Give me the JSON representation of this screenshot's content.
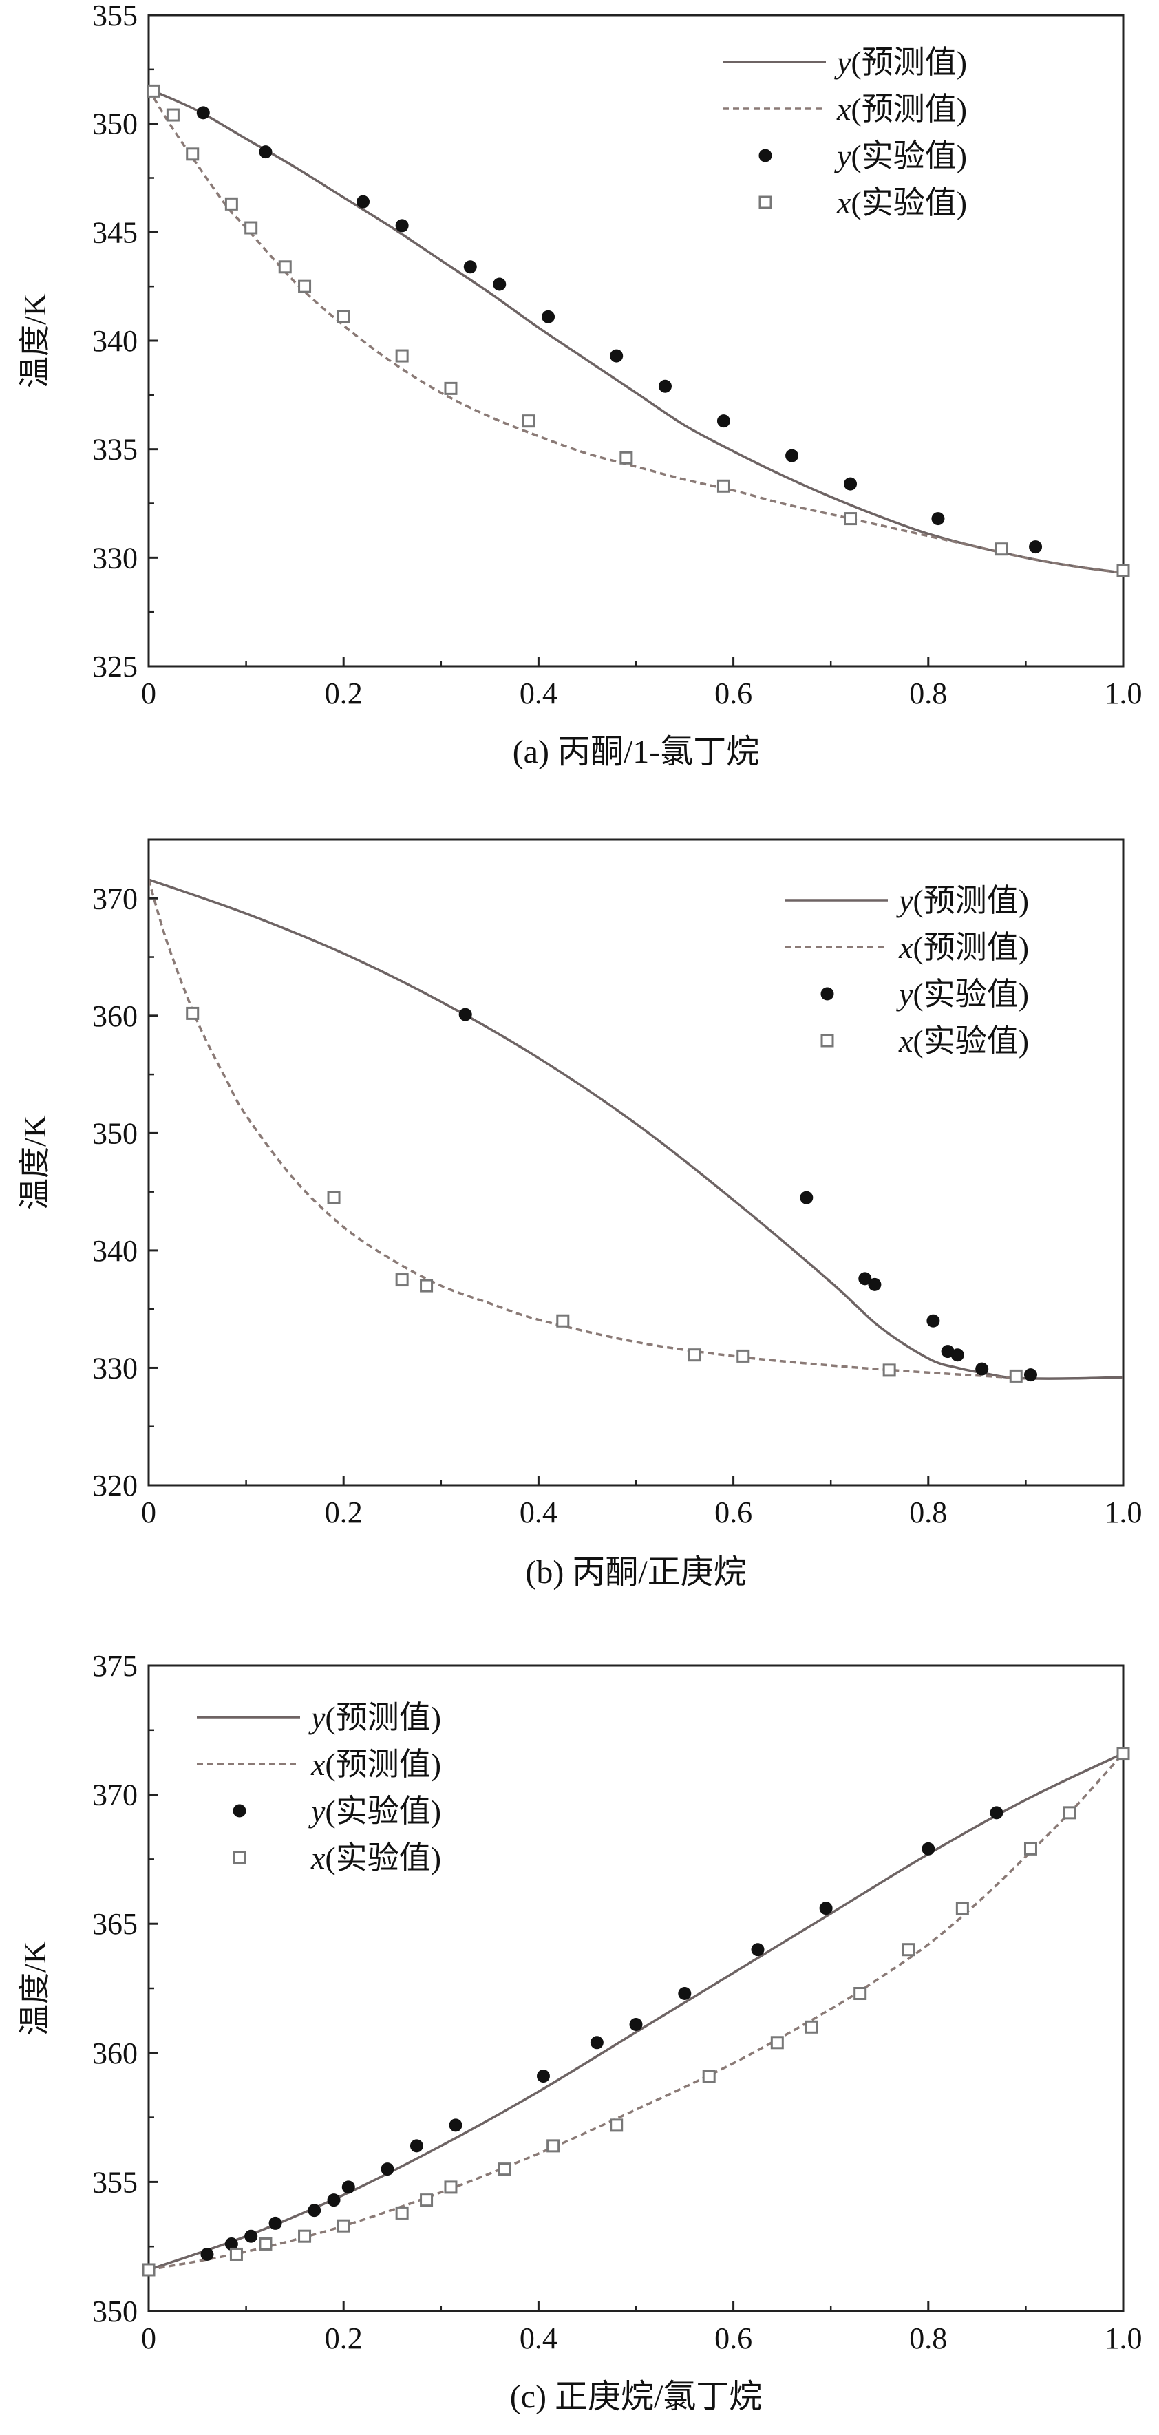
{
  "figure_title": "",
  "chart_data": [
    {
      "type": "scatter",
      "caption": "(a) 丙酮/1-氯丁烷",
      "xlabel": "",
      "ylabel": "温度/K",
      "xlim": [
        0,
        1.0
      ],
      "ylim": [
        325,
        355
      ],
      "xticks": [
        "0",
        "0.2",
        "0.4",
        "0.6",
        "0.8",
        "1.0"
      ],
      "yticks": [
        "325",
        "330",
        "335",
        "340",
        "345",
        "350",
        "355"
      ],
      "grid": false,
      "legend_position": "top-right",
      "legend": [
        {
          "var": "y",
          "text": "(预测值)",
          "kind": "solid"
        },
        {
          "var": "x",
          "text": "(预测值)",
          "kind": "dashed"
        },
        {
          "var": "y",
          "text": "(实验值)",
          "kind": "dot"
        },
        {
          "var": "x",
          "text": "(实验值)",
          "kind": "square"
        }
      ],
      "series": [
        {
          "name": "y(预测值)",
          "kind": "solid",
          "x": [
            0,
            0.05,
            0.1,
            0.15,
            0.2,
            0.25,
            0.3,
            0.35,
            0.4,
            0.45,
            0.5,
            0.55,
            0.6,
            0.65,
            0.7,
            0.75,
            0.8,
            0.85,
            0.9,
            0.95,
            1.0
          ],
          "y": [
            351.6,
            350.6,
            349.3,
            348.0,
            346.6,
            345.2,
            343.7,
            342.2,
            340.6,
            339.1,
            337.6,
            336.1,
            334.9,
            333.8,
            332.8,
            331.9,
            331.1,
            330.5,
            330.0,
            329.6,
            329.3
          ]
        },
        {
          "name": "x(预测值)",
          "kind": "dashed",
          "x": [
            0,
            0.02,
            0.05,
            0.08,
            0.1,
            0.15,
            0.2,
            0.25,
            0.3,
            0.35,
            0.4,
            0.45,
            0.5,
            0.55,
            0.6,
            0.65,
            0.7,
            0.75,
            0.8,
            0.85,
            0.9,
            0.95,
            1.0
          ],
          "y": [
            351.6,
            350.1,
            348.1,
            346.2,
            345.2,
            342.7,
            340.7,
            339.0,
            337.6,
            336.5,
            335.6,
            334.8,
            334.2,
            333.6,
            333.1,
            332.5,
            332.0,
            331.5,
            331.0,
            330.5,
            330.0,
            329.6,
            329.3
          ]
        },
        {
          "name": "y(实验值)",
          "kind": "dot",
          "x": [
            0.056,
            0.12,
            0.22,
            0.26,
            0.33,
            0.36,
            0.41,
            0.48,
            0.53,
            0.59,
            0.66,
            0.72,
            0.81,
            0.91
          ],
          "y": [
            350.5,
            348.7,
            346.4,
            345.3,
            343.4,
            342.6,
            341.1,
            339.3,
            337.9,
            336.3,
            334.7,
            333.4,
            331.8,
            330.5
          ]
        },
        {
          "name": "x(实验值)",
          "kind": "square",
          "x": [
            0.005,
            0.025,
            0.045,
            0.085,
            0.105,
            0.14,
            0.16,
            0.2,
            0.26,
            0.31,
            0.39,
            0.49,
            0.59,
            0.72,
            0.875,
            1.0
          ],
          "y": [
            351.5,
            350.4,
            348.6,
            346.3,
            345.2,
            343.4,
            342.5,
            341.1,
            339.3,
            337.8,
            336.3,
            334.6,
            333.3,
            331.8,
            330.4,
            329.4
          ]
        }
      ]
    },
    {
      "type": "scatter",
      "caption": "(b) 丙酮/正庚烷",
      "xlabel": "",
      "ylabel": "温度/K",
      "xlim": [
        0,
        1.0
      ],
      "ylim": [
        320,
        375
      ],
      "xticks": [
        "0",
        "0.2",
        "0.4",
        "0.6",
        "0.8",
        "1.0"
      ],
      "yticks": [
        "320",
        "330",
        "340",
        "350",
        "360",
        "370"
      ],
      "grid": false,
      "legend_position": "top-right",
      "legend": [
        {
          "var": "y",
          "text": "(预测值)",
          "kind": "solid"
        },
        {
          "var": "x",
          "text": "(预测值)",
          "kind": "dashed"
        },
        {
          "var": "y",
          "text": "(实验值)",
          "kind": "dot"
        },
        {
          "var": "x",
          "text": "(实验值)",
          "kind": "square"
        }
      ],
      "series": [
        {
          "name": "y(预测值)",
          "kind": "solid",
          "x": [
            0,
            0.1,
            0.2,
            0.3,
            0.4,
            0.5,
            0.6,
            0.7,
            0.75,
            0.8,
            0.83,
            0.86,
            0.88,
            0.9,
            0.95,
            1.0
          ],
          "y": [
            371.6,
            368.7,
            365.3,
            361.2,
            356.4,
            350.8,
            344.3,
            337.3,
            333.5,
            330.8,
            330.0,
            329.5,
            329.2,
            329.1,
            329.1,
            329.2
          ]
        },
        {
          "name": "x(预测值)",
          "kind": "dashed",
          "x": [
            0,
            0.02,
            0.05,
            0.08,
            0.1,
            0.15,
            0.2,
            0.25,
            0.3,
            0.35,
            0.4,
            0.5,
            0.6,
            0.7,
            0.8,
            0.9
          ],
          "y": [
            371.6,
            366.0,
            359.5,
            354.5,
            351.5,
            346.0,
            342.0,
            339.2,
            337.0,
            335.5,
            334.1,
            332.2,
            331.0,
            330.2,
            329.6,
            329.1
          ]
        },
        {
          "name": "y(实验值)",
          "kind": "dot",
          "x": [
            0.325,
            0.675,
            0.735,
            0.745,
            0.805,
            0.82,
            0.83,
            0.855,
            0.905
          ],
          "y": [
            360.1,
            344.5,
            337.6,
            337.1,
            334.0,
            331.4,
            331.1,
            329.9,
            329.4
          ]
        },
        {
          "name": "x(实验值)",
          "kind": "square",
          "x": [
            0.045,
            0.19,
            0.26,
            0.285,
            0.425,
            0.56,
            0.61,
            0.76,
            0.89
          ],
          "y": [
            360.2,
            344.5,
            337.5,
            337.0,
            334.0,
            331.1,
            331.0,
            329.8,
            329.3
          ]
        }
      ]
    },
    {
      "type": "scatter",
      "caption": "(c) 正庚烷/氯丁烷",
      "xlabel": "",
      "ylabel": "温度/K",
      "xlim": [
        0,
        1.0
      ],
      "ylim": [
        350,
        375
      ],
      "xticks": [
        "0",
        "0.2",
        "0.4",
        "0.6",
        "0.8",
        "1.0"
      ],
      "yticks": [
        "350",
        "355",
        "360",
        "365",
        "370",
        "375"
      ],
      "grid": false,
      "legend_position": "top-left",
      "legend": [
        {
          "var": "y",
          "text": "(预测值)",
          "kind": "solid"
        },
        {
          "var": "x",
          "text": "(预测值)",
          "kind": "dashed"
        },
        {
          "var": "y",
          "text": "(实验值)",
          "kind": "dot"
        },
        {
          "var": "x",
          "text": "(实验值)",
          "kind": "square"
        }
      ],
      "series": [
        {
          "name": "y(预测值)",
          "kind": "solid",
          "x": [
            0,
            0.1,
            0.2,
            0.3,
            0.4,
            0.5,
            0.6,
            0.7,
            0.8,
            0.9,
            1.0
          ],
          "y": [
            351.6,
            352.9,
            354.5,
            356.4,
            358.5,
            360.8,
            363.1,
            365.4,
            367.7,
            369.8,
            371.6
          ]
        },
        {
          "name": "x(预测值)",
          "kind": "dashed",
          "x": [
            0,
            0.1,
            0.2,
            0.3,
            0.4,
            0.5,
            0.6,
            0.7,
            0.75,
            0.8,
            0.85,
            0.9,
            0.95,
            1.0
          ],
          "y": [
            351.6,
            352.3,
            353.3,
            354.6,
            356.1,
            357.8,
            359.6,
            361.7,
            362.9,
            364.2,
            365.8,
            367.6,
            369.5,
            371.6
          ]
        },
        {
          "name": "y(实验值)",
          "kind": "dot",
          "x": [
            0.06,
            0.085,
            0.105,
            0.13,
            0.17,
            0.19,
            0.205,
            0.245,
            0.275,
            0.315,
            0.405,
            0.46,
            0.5,
            0.55,
            0.625,
            0.695,
            0.8,
            0.87
          ],
          "y": [
            352.2,
            352.6,
            352.9,
            353.4,
            353.9,
            354.3,
            354.8,
            355.5,
            356.4,
            357.2,
            359.1,
            360.4,
            361.1,
            362.3,
            364.0,
            365.6,
            367.9,
            369.3
          ]
        },
        {
          "name": "x(实验值)",
          "kind": "square",
          "x": [
            0.0,
            0.09,
            0.12,
            0.16,
            0.2,
            0.26,
            0.285,
            0.31,
            0.365,
            0.415,
            0.48,
            0.575,
            0.645,
            0.68,
            0.73,
            0.78,
            0.835,
            0.905,
            0.945,
            1.0
          ],
          "y": [
            351.6,
            352.2,
            352.6,
            352.9,
            353.3,
            353.8,
            354.3,
            354.8,
            355.5,
            356.4,
            357.2,
            359.1,
            360.4,
            361.0,
            362.3,
            364.0,
            365.6,
            367.9,
            369.3,
            371.6
          ]
        }
      ]
    }
  ]
}
